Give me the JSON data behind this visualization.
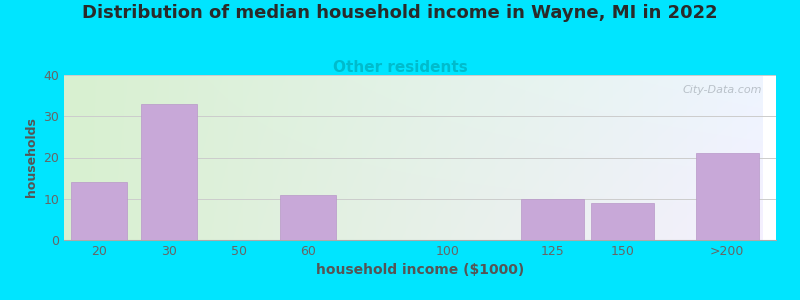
{
  "title": "Distribution of median household income in Wayne, MI in 2022",
  "subtitle": "Other residents",
  "xlabel": "household income ($1000)",
  "ylabel": "households",
  "title_fontsize": 13,
  "subtitle_fontsize": 11,
  "subtitle_color": "#00bbcc",
  "bar_labels": [
    "20",
    "30",
    "50",
    "60",
    "100",
    "125",
    "150",
    ">200"
  ],
  "bar_values": [
    14,
    33,
    0,
    11,
    0,
    10,
    9,
    21
  ],
  "bar_color": "#c8a8d8",
  "bar_edgecolor": "#b898c8",
  "ylim": [
    0,
    40
  ],
  "yticks": [
    0,
    10,
    20,
    30,
    40
  ],
  "background_outer": "#00e5ff",
  "background_plot_top_left": "#d8f0d0",
  "background_plot_top_right": "#e8f0f8",
  "background_plot_bottom": "#f5f0ff",
  "grid_color": "#cccccc",
  "watermark": "City-Data.com",
  "ylabel_fontsize": 9,
  "xlabel_fontsize": 10,
  "tick_fontsize": 9,
  "bar_positions": [
    0,
    1,
    2,
    3,
    5,
    6.5,
    7.5,
    9
  ],
  "bar_widths": [
    0.8,
    0.8,
    0.8,
    0.8,
    0.8,
    0.9,
    0.9,
    0.9
  ]
}
